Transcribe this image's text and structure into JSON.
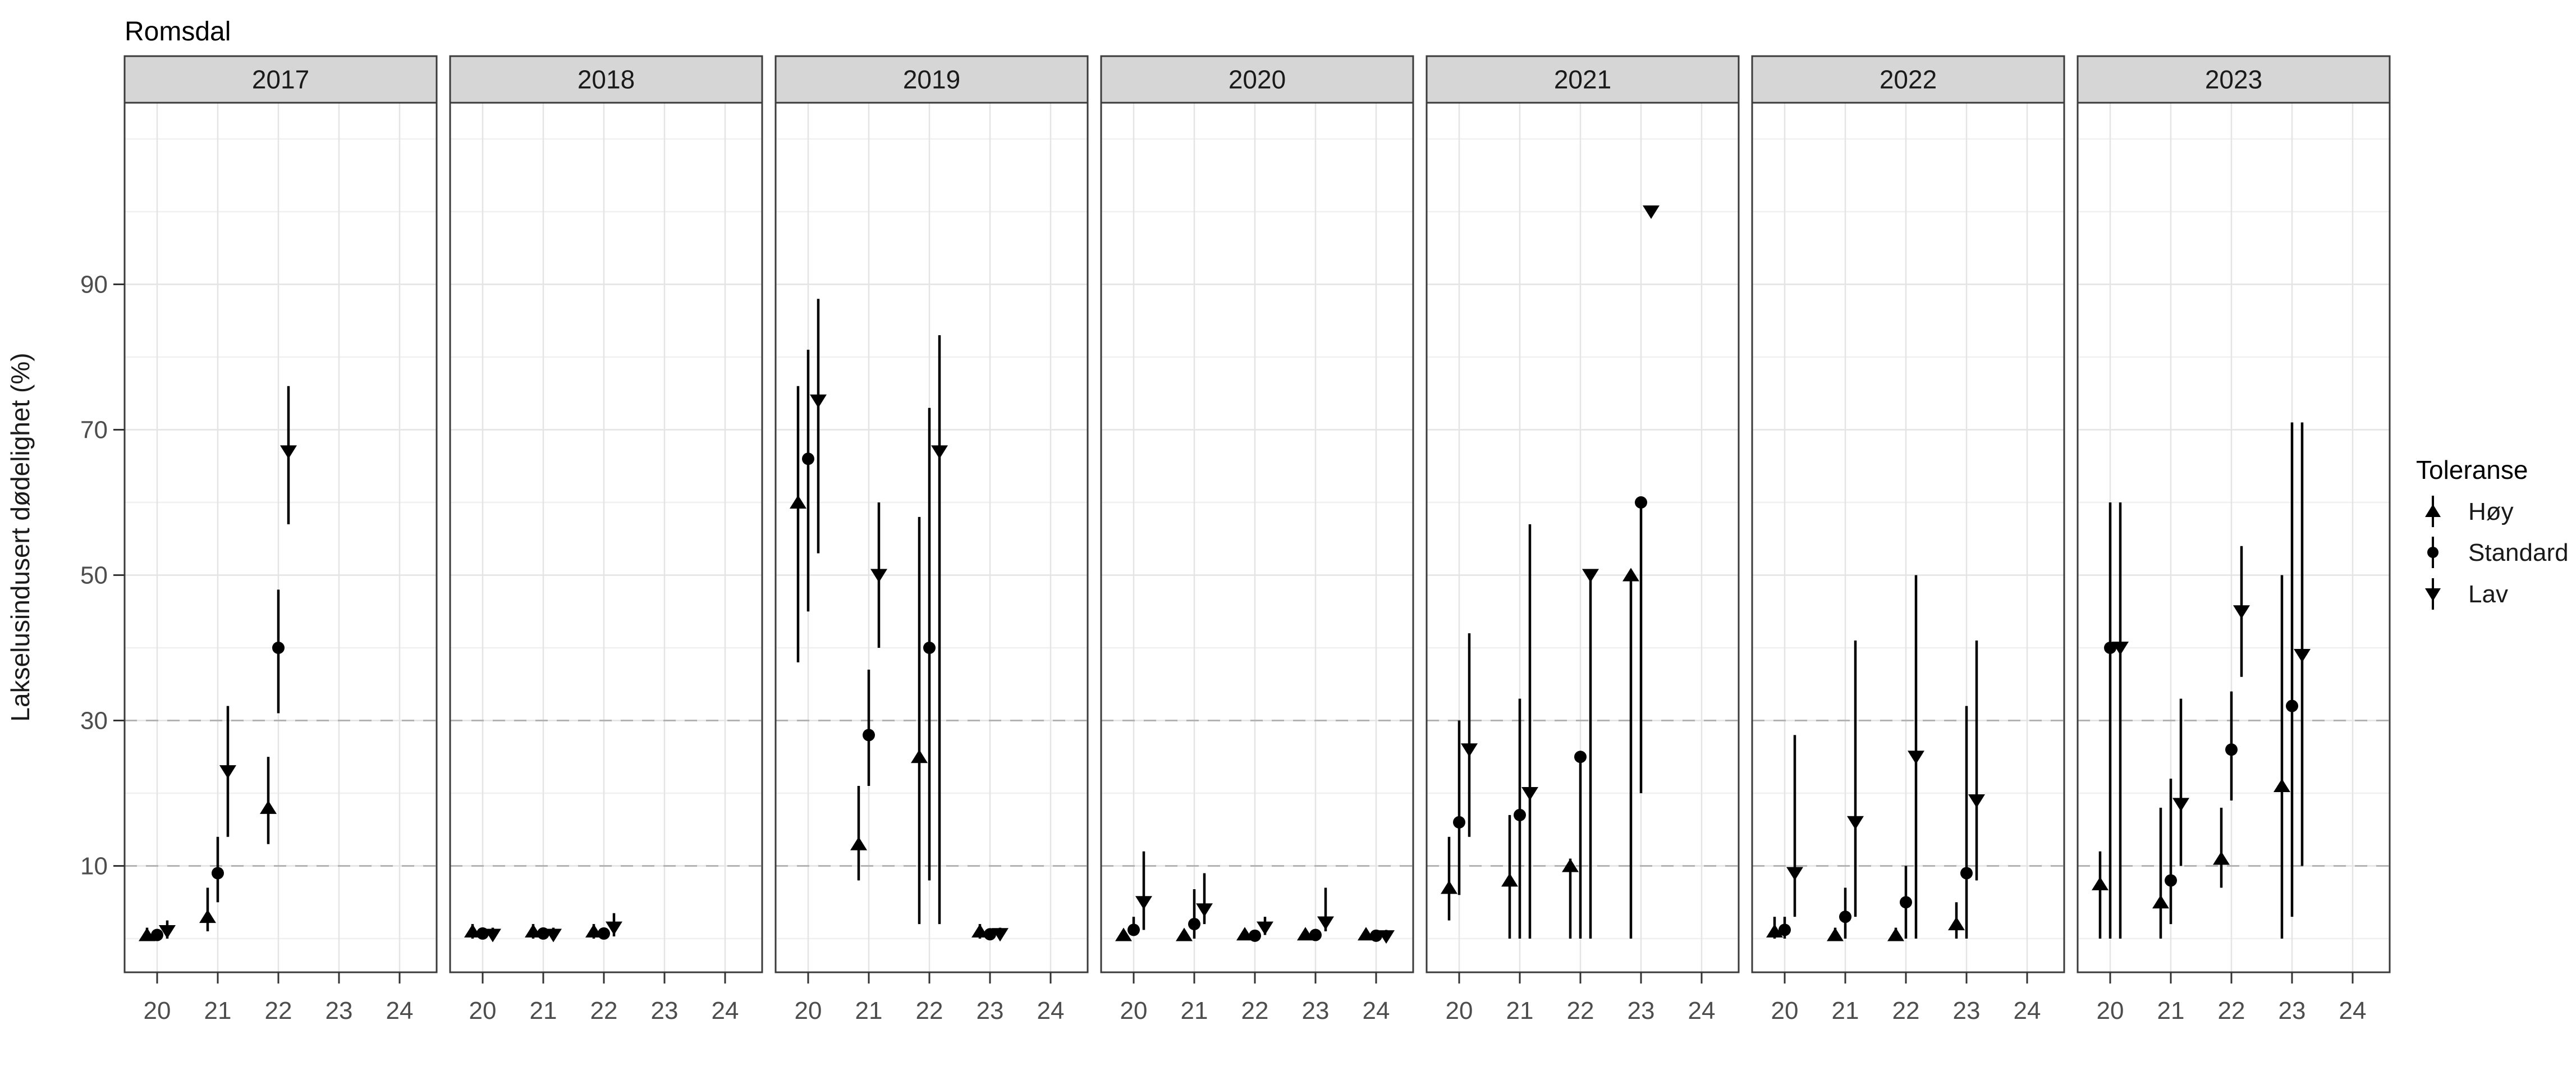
{
  "title": "Romsdal",
  "colors": {
    "marker": "#000000",
    "strip_fill": "#d6d6d6",
    "strip_border": "#3b3b3b",
    "panel_border": "#3b3b3b",
    "grid_major": "#e4e4e4",
    "grid_minor": "#f0f0f0",
    "dashed_ref": "#b3b3b3",
    "axis_text": "#4d4d4d",
    "tick_mark": "#333333"
  },
  "chart_data": {
    "type": "pointrange-faceted",
    "title": "Romsdal",
    "y_axis": {
      "title": "Lakselusindusert dødelighet (%)",
      "ticks": [
        90,
        70,
        50,
        30,
        10
      ],
      "minor_gridlines": [
        0,
        20,
        40,
        60,
        80,
        100,
        110
      ],
      "dashed_refs": [
        30,
        10
      ],
      "range": [
        -4.6,
        115
      ]
    },
    "x_axis": {
      "ticks": [
        20,
        21,
        22,
        23,
        24
      ]
    },
    "legend": {
      "title": "Toleranse",
      "items": [
        {
          "key": "hoy",
          "label": "Høy",
          "shape": "triangle-up"
        },
        {
          "key": "std",
          "label": "Standard",
          "shape": "circle"
        },
        {
          "key": "lav",
          "label": "Lav",
          "shape": "triangle-down"
        }
      ]
    },
    "facets": [
      {
        "label": "2017",
        "points": [
          {
            "w": 20,
            "t": "hoy",
            "v": 0.5,
            "lo": 0,
            "hi": 1.5
          },
          {
            "w": 20,
            "t": "std",
            "v": 0.5,
            "lo": 0,
            "hi": 1
          },
          {
            "w": 20,
            "t": "lav",
            "v": 1,
            "lo": 0,
            "hi": 2.5
          },
          {
            "w": 21,
            "t": "hoy",
            "v": 3,
            "lo": 1,
            "hi": 7
          },
          {
            "w": 21,
            "t": "std",
            "v": 9,
            "lo": 5,
            "hi": 14
          },
          {
            "w": 21,
            "t": "lav",
            "v": 23,
            "lo": 14,
            "hi": 32
          },
          {
            "w": 22,
            "t": "hoy",
            "v": 18,
            "lo": 13,
            "hi": 25
          },
          {
            "w": 22,
            "t": "std",
            "v": 40,
            "lo": 31,
            "hi": 48
          },
          {
            "w": 22,
            "t": "lav",
            "v": 67,
            "lo": 57,
            "hi": 76
          }
        ]
      },
      {
        "label": "2018",
        "points": [
          {
            "w": 20,
            "t": "hoy",
            "v": 1,
            "lo": 0,
            "hi": 2
          },
          {
            "w": 20,
            "t": "std",
            "v": 0.7,
            "lo": 0,
            "hi": 1.5
          },
          {
            "w": 20,
            "t": "lav",
            "v": 0.5,
            "lo": 0,
            "hi": 1.5
          },
          {
            "w": 21,
            "t": "hoy",
            "v": 1,
            "lo": 0,
            "hi": 2
          },
          {
            "w": 21,
            "t": "std",
            "v": 0.7,
            "lo": 0,
            "hi": 1.5
          },
          {
            "w": 21,
            "t": "lav",
            "v": 0.5,
            "lo": 0,
            "hi": 1.5
          },
          {
            "w": 22,
            "t": "hoy",
            "v": 1,
            "lo": 0,
            "hi": 2
          },
          {
            "w": 22,
            "t": "std",
            "v": 0.7,
            "lo": 0,
            "hi": 1.5
          },
          {
            "w": 22,
            "t": "lav",
            "v": 1.5,
            "lo": 0.3,
            "hi": 3.5
          }
        ]
      },
      {
        "label": "2019",
        "points": [
          {
            "w": 20,
            "t": "hoy",
            "v": 60,
            "lo": 38,
            "hi": 76
          },
          {
            "w": 20,
            "t": "std",
            "v": 66,
            "lo": 45,
            "hi": 81
          },
          {
            "w": 20,
            "t": "lav",
            "v": 74,
            "lo": 53,
            "hi": 88
          },
          {
            "w": 21,
            "t": "hoy",
            "v": 13,
            "lo": 8,
            "hi": 21
          },
          {
            "w": 21,
            "t": "std",
            "v": 28,
            "lo": 21,
            "hi": 37
          },
          {
            "w": 21,
            "t": "lav",
            "v": 50,
            "lo": 40,
            "hi": 60
          },
          {
            "w": 22,
            "t": "hoy",
            "v": 25,
            "lo": 2,
            "hi": 58
          },
          {
            "w": 22,
            "t": "std",
            "v": 40,
            "lo": 8,
            "hi": 73
          },
          {
            "w": 22,
            "t": "lav",
            "v": 67,
            "lo": 2,
            "hi": 83
          },
          {
            "w": 23,
            "t": "hoy",
            "v": 1,
            "lo": 0,
            "hi": 2
          },
          {
            "w": 23,
            "t": "std",
            "v": 0.6,
            "lo": 0,
            "hi": 1.2
          },
          {
            "w": 23,
            "t": "lav",
            "v": 0.6,
            "lo": 0,
            "hi": 1.5
          }
        ]
      },
      {
        "label": "2020",
        "points": [
          {
            "w": 20,
            "t": "hoy",
            "v": 0.5,
            "lo": 0,
            "hi": 1.2
          },
          {
            "w": 20,
            "t": "std",
            "v": 1.2,
            "lo": 0.5,
            "hi": 3
          },
          {
            "w": 20,
            "t": "lav",
            "v": 5,
            "lo": 1.2,
            "hi": 12
          },
          {
            "w": 21,
            "t": "hoy",
            "v": 0.5,
            "lo": 0,
            "hi": 1.2
          },
          {
            "w": 21,
            "t": "std",
            "v": 2,
            "lo": 0,
            "hi": 6.8
          },
          {
            "w": 21,
            "t": "lav",
            "v": 4,
            "lo": 2,
            "hi": 9
          },
          {
            "w": 22,
            "t": "hoy",
            "v": 0.6,
            "lo": 0,
            "hi": 1.2
          },
          {
            "w": 22,
            "t": "std",
            "v": 0.4,
            "lo": 0,
            "hi": 1
          },
          {
            "w": 22,
            "t": "lav",
            "v": 1.5,
            "lo": 0.5,
            "hi": 3
          },
          {
            "w": 23,
            "t": "hoy",
            "v": 0.6,
            "lo": 0,
            "hi": 1.2
          },
          {
            "w": 23,
            "t": "std",
            "v": 0.5,
            "lo": 0,
            "hi": 1
          },
          {
            "w": 23,
            "t": "lav",
            "v": 2.2,
            "lo": 1,
            "hi": 7
          },
          {
            "w": 24,
            "t": "hoy",
            "v": 0.6,
            "lo": 0,
            "hi": 1.2
          },
          {
            "w": 24,
            "t": "std",
            "v": 0.4,
            "lo": 0,
            "hi": 1
          },
          {
            "w": 24,
            "t": "lav",
            "v": 0.3,
            "lo": 0,
            "hi": 1.2
          }
        ]
      },
      {
        "label": "2021",
        "points": [
          {
            "w": 20,
            "t": "hoy",
            "v": 7,
            "lo": 2.5,
            "hi": 14
          },
          {
            "w": 20,
            "t": "std",
            "v": 16,
            "lo": 6,
            "hi": 30
          },
          {
            "w": 20,
            "t": "lav",
            "v": 26,
            "lo": 14,
            "hi": 42
          },
          {
            "w": 21,
            "t": "hoy",
            "v": 8,
            "lo": 0,
            "hi": 17
          },
          {
            "w": 21,
            "t": "std",
            "v": 17,
            "lo": 0,
            "hi": 33
          },
          {
            "w": 21,
            "t": "lav",
            "v": 20,
            "lo": 0,
            "hi": 57
          },
          {
            "w": 22,
            "t": "hoy",
            "v": 10,
            "lo": 0,
            "hi": 11
          },
          {
            "w": 22,
            "t": "std",
            "v": 25,
            "lo": 0,
            "hi": 25
          },
          {
            "w": 22,
            "t": "lav",
            "v": 50,
            "lo": 0,
            "hi": 50
          },
          {
            "w": 23,
            "t": "hoy",
            "v": 50,
            "lo": 0,
            "hi": 50
          },
          {
            "w": 23,
            "t": "std",
            "v": 60,
            "lo": 20,
            "hi": 60
          },
          {
            "w": 23,
            "t": "lav",
            "v": 100,
            "lo": 100,
            "hi": 100
          }
        ]
      },
      {
        "label": "2022",
        "points": [
          {
            "w": 20,
            "t": "hoy",
            "v": 1,
            "lo": 0,
            "hi": 3
          },
          {
            "w": 20,
            "t": "std",
            "v": 1.2,
            "lo": 0,
            "hi": 3
          },
          {
            "w": 20,
            "t": "lav",
            "v": 9,
            "lo": 3,
            "hi": 28
          },
          {
            "w": 21,
            "t": "hoy",
            "v": 0.5,
            "lo": 0,
            "hi": 1.5
          },
          {
            "w": 21,
            "t": "std",
            "v": 3,
            "lo": 0,
            "hi": 7
          },
          {
            "w": 21,
            "t": "lav",
            "v": 16,
            "lo": 3,
            "hi": 41
          },
          {
            "w": 22,
            "t": "hoy",
            "v": 0.5,
            "lo": 0,
            "hi": 1.5
          },
          {
            "w": 22,
            "t": "std",
            "v": 5,
            "lo": 0,
            "hi": 10
          },
          {
            "w": 22,
            "t": "lav",
            "v": 25,
            "lo": 0,
            "hi": 50
          },
          {
            "w": 23,
            "t": "hoy",
            "v": 2,
            "lo": 0,
            "hi": 5
          },
          {
            "w": 23,
            "t": "std",
            "v": 9,
            "lo": 0,
            "hi": 32
          },
          {
            "w": 23,
            "t": "lav",
            "v": 19,
            "lo": 8,
            "hi": 41
          }
        ]
      },
      {
        "label": "2023",
        "points": [
          {
            "w": 20,
            "t": "hoy",
            "v": 7.5,
            "lo": 0,
            "hi": 12
          },
          {
            "w": 20,
            "t": "std",
            "v": 40,
            "lo": 0,
            "hi": 60
          },
          {
            "w": 20,
            "t": "lav",
            "v": 40,
            "lo": 0,
            "hi": 60
          },
          {
            "w": 21,
            "t": "hoy",
            "v": 5,
            "lo": 0,
            "hi": 18
          },
          {
            "w": 21,
            "t": "std",
            "v": 8,
            "lo": 2,
            "hi": 22
          },
          {
            "w": 21,
            "t": "lav",
            "v": 18.5,
            "lo": 10,
            "hi": 33
          },
          {
            "w": 22,
            "t": "hoy",
            "v": 11,
            "lo": 7,
            "hi": 18
          },
          {
            "w": 22,
            "t": "std",
            "v": 26,
            "lo": 19,
            "hi": 34
          },
          {
            "w": 22,
            "t": "lav",
            "v": 45,
            "lo": 36,
            "hi": 54
          },
          {
            "w": 23,
            "t": "hoy",
            "v": 21,
            "lo": 0,
            "hi": 50
          },
          {
            "w": 23,
            "t": "std",
            "v": 32,
            "lo": 3,
            "hi": 71
          },
          {
            "w": 23,
            "t": "lav",
            "v": 39,
            "lo": 10,
            "hi": 71
          }
        ]
      }
    ]
  }
}
